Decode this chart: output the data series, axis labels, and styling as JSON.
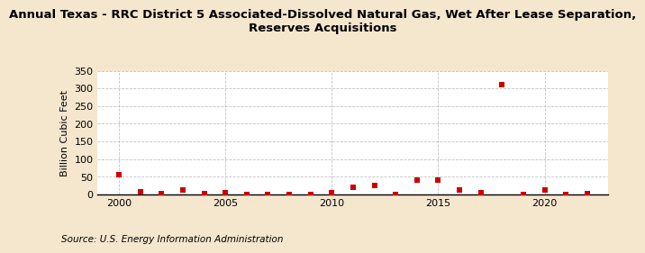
{
  "title": "Annual Texas - RRC District 5 Associated-Dissolved Natural Gas, Wet After Lease Separation,\nReserves Acquisitions",
  "ylabel": "Billion Cubic Feet",
  "source": "Source: U.S. Energy Information Administration",
  "background_color": "#f5e6ce",
  "plot_background_color": "#ffffff",
  "xlim": [
    1999,
    2023
  ],
  "ylim": [
    0,
    350
  ],
  "yticks": [
    0,
    50,
    100,
    150,
    200,
    250,
    300,
    350
  ],
  "xticks": [
    2000,
    2005,
    2010,
    2015,
    2020
  ],
  "years": [
    2000,
    2001,
    2002,
    2003,
    2004,
    2005,
    2006,
    2007,
    2008,
    2009,
    2010,
    2011,
    2012,
    2013,
    2014,
    2015,
    2016,
    2017,
    2018,
    2019,
    2020,
    2021,
    2022
  ],
  "values": [
    55,
    8,
    2,
    12,
    2,
    5,
    1,
    1,
    1,
    1,
    5,
    20,
    25,
    1,
    42,
    40,
    12,
    5,
    310,
    1,
    12,
    1,
    3
  ],
  "marker_color": "#cc0000",
  "marker_size": 18,
  "grid_color": "#bbbbbb",
  "title_fontsize": 9.5,
  "label_fontsize": 8,
  "tick_fontsize": 8,
  "source_fontsize": 7.5
}
